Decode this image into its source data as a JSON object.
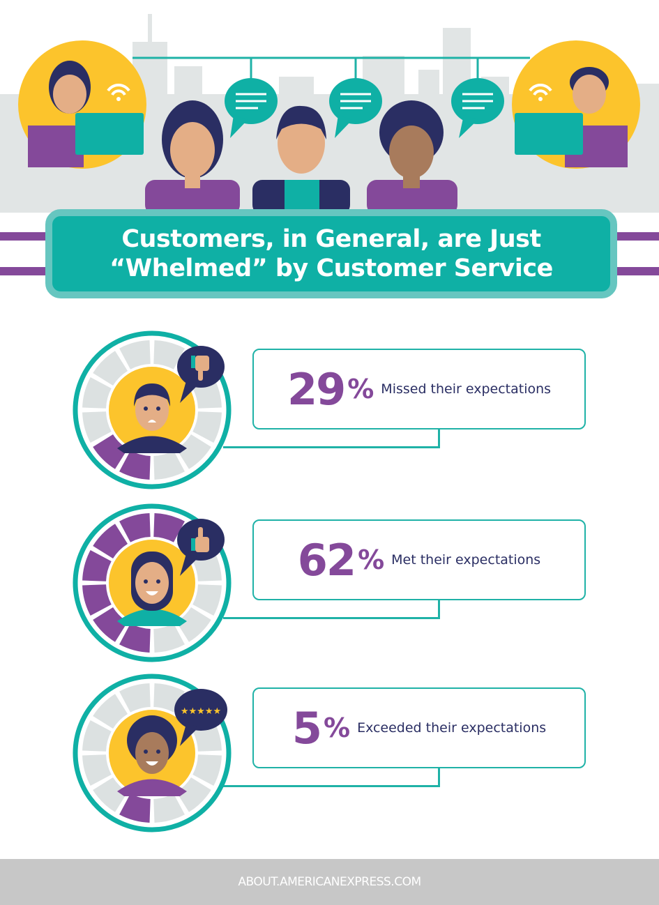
{
  "title": {
    "line1": "Customers, in General, are Just",
    "line2": "“Whelmed” by Customer Service"
  },
  "stats": [
    {
      "value": "29",
      "unit": "%",
      "label": "Missed their expectations",
      "segments_filled": 2,
      "segments_total": 12,
      "bubble_icon": "thumbs-down-icon"
    },
    {
      "value": "62",
      "unit": "%",
      "label": "Met their expectations",
      "segments_filled": 7,
      "segments_total": 12,
      "bubble_icon": "thumbs-up-icon"
    },
    {
      "value": "5",
      "unit": "%",
      "label": "Exceeded their expectations",
      "segments_filled": 1,
      "segments_total": 12,
      "bubble_icon": "five-stars-icon"
    }
  ],
  "footer": {
    "text": "ABOUT.AMERICANEXPRESS.COM"
  },
  "colors": {
    "teal": "#0fb0a5",
    "purple": "#84499a",
    "navy": "#2a2e63",
    "yellow": "#fcc42c",
    "segment_empty": "#dce1e1"
  }
}
